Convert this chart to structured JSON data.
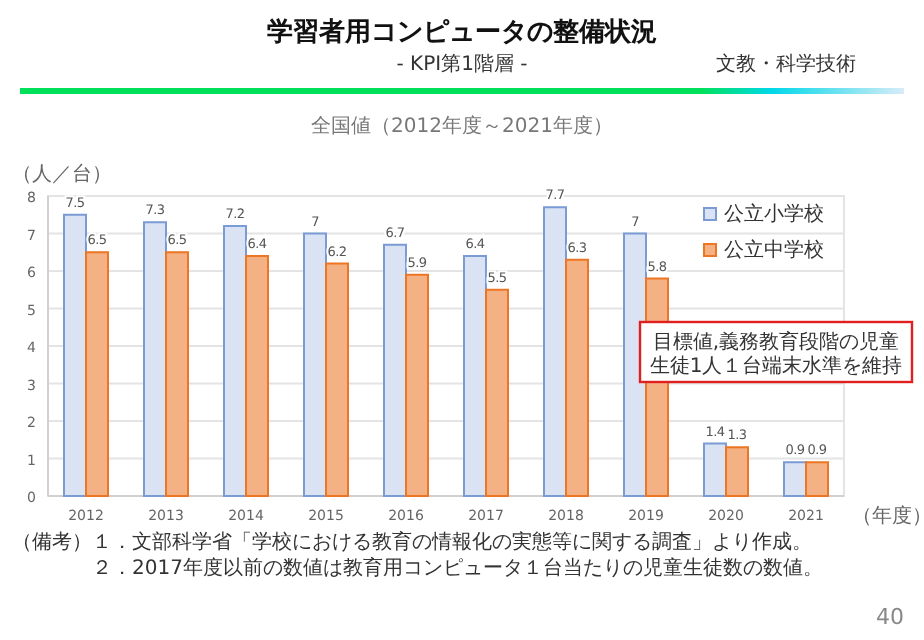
{
  "chart_data": {
    "type": "bar",
    "title": "学習者用コンピュータの整備状況",
    "subtitle": "- KPI第1階層 -",
    "xlabel": "（年度）",
    "ylabel": "（人／台）",
    "categories": [
      "2012",
      "2013",
      "2014",
      "2015",
      "2016",
      "2017",
      "2018",
      "2019",
      "2020",
      "2021"
    ],
    "series": [
      {
        "name": "公立小学校",
        "color": "#dae3f3",
        "values": [
          7.5,
          7.3,
          7.2,
          7,
          6.7,
          6.4,
          7.7,
          7,
          1.4,
          0.9
        ]
      },
      {
        "name": "公立中学校",
        "color": "#f4b183",
        "values": [
          6.5,
          6.5,
          6.4,
          6.2,
          5.9,
          5.5,
          6.3,
          5.8,
          1.3,
          0.9
        ]
      }
    ],
    "ylim": [
      0,
      8
    ],
    "yticks": [
      0,
      1,
      2,
      3,
      4,
      5,
      6,
      7,
      8
    ],
    "grid": "y",
    "legend": "top right",
    "data_labels": true,
    "annotations": [
      "文教・科学技術",
      "全国値（2012年度～2021年度）",
      "目標値,義務教育段階の児童生徒1人１台端末水準を維持",
      "（備考）１．文部科学省「学校における教育の情報化の実態等に関する調査」より作成。",
      "　　　　２．2017年度以前の数値は教育用コンピュータ１台当たりの児童生徒数の数値。",
      "40"
    ]
  }
}
